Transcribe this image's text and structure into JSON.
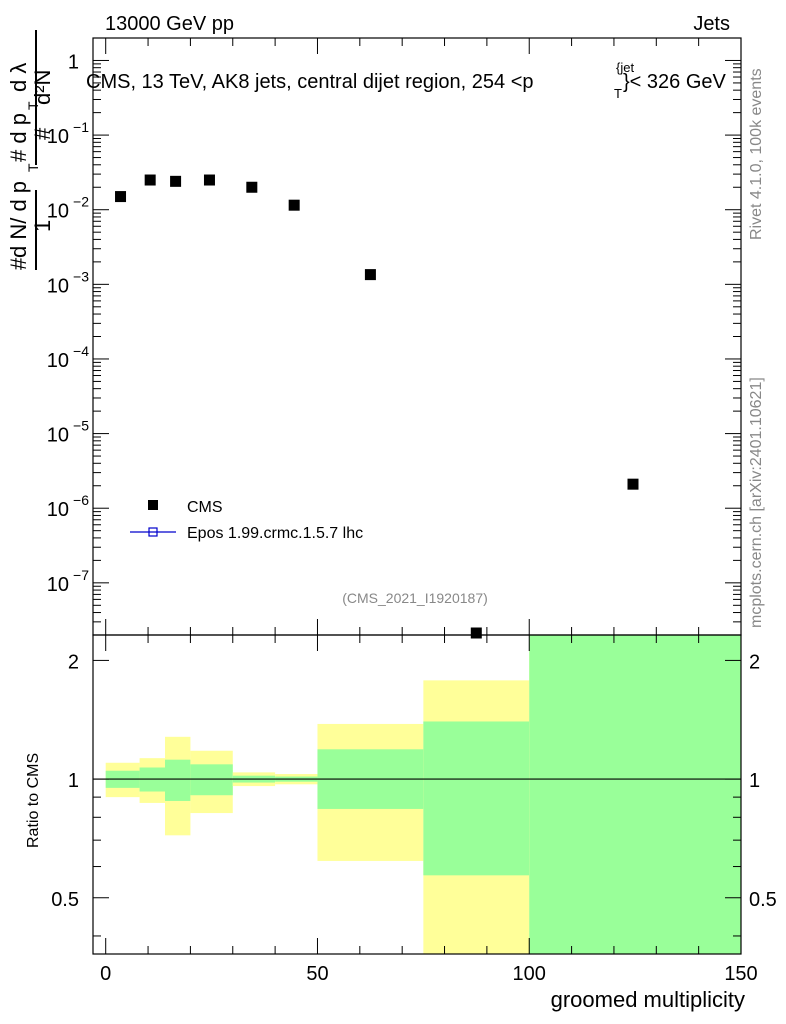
{
  "header": {
    "energy_label": "13000 GeV pp",
    "process_label": "Jets",
    "title": "CMS, 13 TeV, AK8 jets, central dijet region, 254 <p_T^{jet}< 326 GeV",
    "analysis_id": "(CMS_2021_I1920187)",
    "rivet_label": "Rivet 4.1.0,  100k events",
    "mcplots_label": "mcplots.cern.ch [arXiv:2401.10621]"
  },
  "chart_data": [
    {
      "type": "scatter",
      "panel": "main",
      "yscale": "log",
      "xlim": [
        -3,
        150
      ],
      "ylim": [
        2e-08,
        2
      ],
      "ylabel": "1/dN/dp_T · d²N/dp_T dλ",
      "y_ticks": [
        {
          "value": 1,
          "label": "1"
        },
        {
          "value": 0.1,
          "label": "10",
          "exp": "−1"
        },
        {
          "value": 0.01,
          "label": "10",
          "exp": "−2"
        },
        {
          "value": 0.001,
          "label": "10",
          "exp": "−3"
        },
        {
          "value": 0.0001,
          "label": "10",
          "exp": "−4"
        },
        {
          "value": 1e-05,
          "label": "10",
          "exp": "−5"
        },
        {
          "value": 1e-06,
          "label": "10",
          "exp": "−6"
        },
        {
          "value": 1e-07,
          "label": "10",
          "exp": "−7"
        }
      ],
      "series": [
        {
          "name": "CMS",
          "color": "#000000",
          "marker": "square",
          "x": [
            3.5,
            10.5,
            16.5,
            24.5,
            34.5,
            44.5,
            62.5,
            87.5,
            124.5
          ],
          "y": [
            0.015,
            0.025,
            0.024,
            0.025,
            0.02,
            0.0115,
            0.00135,
            2e-08,
            2.1e-06
          ]
        },
        {
          "name": "Epos 1.99.crmc.1.5.7 lhc",
          "color": "#0000cc",
          "marker": "open-square-line",
          "x": [],
          "y": []
        }
      ],
      "legend": [
        "CMS",
        "Epos 1.99.crmc.1.5.7 lhc"
      ]
    },
    {
      "type": "area",
      "panel": "ratio",
      "xlim": [
        -3,
        150
      ],
      "ylim": [
        0.36,
        2.32
      ],
      "ylabel": "Ratio to CMS",
      "xlabel": "groomed multiplicity",
      "x_ticks": [
        0,
        50,
        100,
        150
      ],
      "y_ticks": [
        0.5,
        1,
        2
      ],
      "bins": [
        {
          "lo": 0,
          "hi": 8,
          "stat": [
            0.95,
            1.05
          ],
          "total": [
            0.9,
            1.1
          ]
        },
        {
          "lo": 8,
          "hi": 14,
          "stat": [
            0.93,
            1.07
          ],
          "total": [
            0.87,
            1.13
          ]
        },
        {
          "lo": 14,
          "hi": 20,
          "stat": [
            0.88,
            1.12
          ],
          "total": [
            0.72,
            1.28
          ]
        },
        {
          "lo": 20,
          "hi": 30,
          "stat": [
            0.91,
            1.09
          ],
          "total": [
            0.82,
            1.18
          ]
        },
        {
          "lo": 30,
          "hi": 40,
          "stat": [
            0.98,
            1.02
          ],
          "total": [
            0.96,
            1.04
          ]
        },
        {
          "lo": 40,
          "hi": 50,
          "stat": [
            0.985,
            1.015
          ],
          "total": [
            0.97,
            1.03
          ]
        },
        {
          "lo": 50,
          "hi": 75,
          "stat": [
            0.84,
            1.19
          ],
          "total": [
            0.62,
            1.38
          ]
        },
        {
          "lo": 75,
          "hi": 100,
          "stat": [
            0.57,
            1.4
          ],
          "total": [
            0.36,
            1.78
          ]
        },
        {
          "lo": 100,
          "hi": 150,
          "stat": [
            0.36,
            2.32
          ],
          "total": [
            0.36,
            2.32
          ]
        }
      ],
      "colors": {
        "stat": "#99ff99",
        "total": "#ffff99",
        "reference": "#000000"
      }
    }
  ]
}
